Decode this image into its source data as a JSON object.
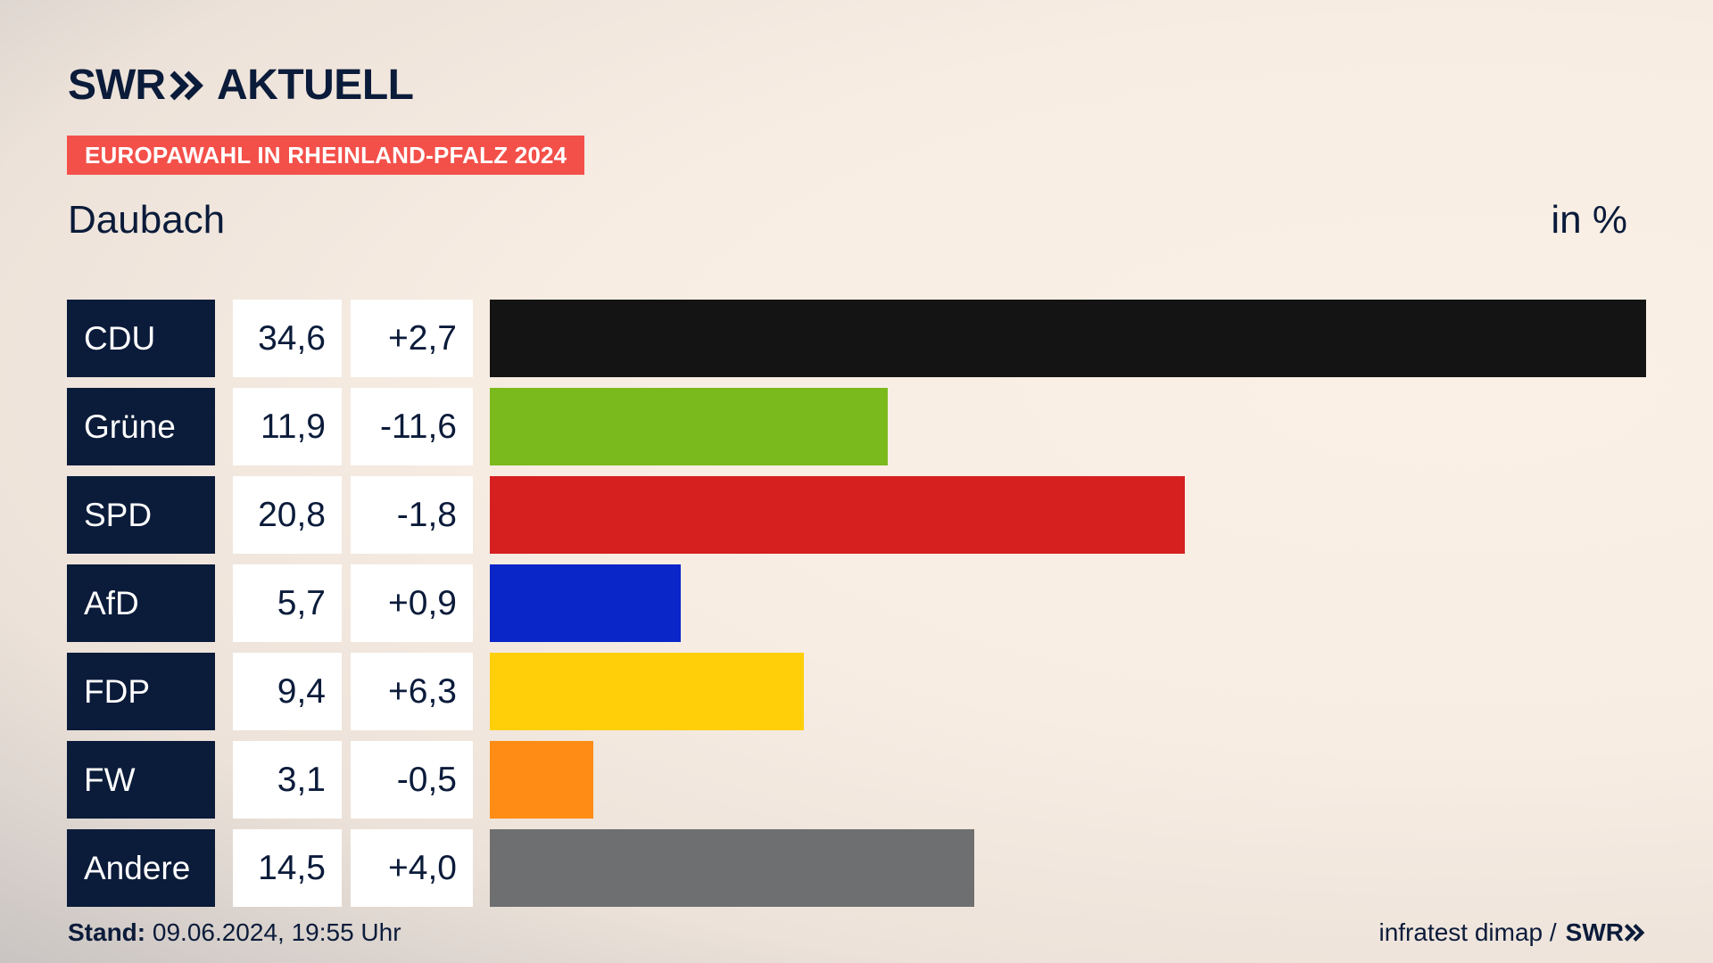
{
  "header": {
    "logo_swr": "SWR",
    "logo_aktuell": "AKTUELL",
    "banner": "EUROPAWAHL IN RHEINLAND-PFALZ 2024",
    "location": "Daubach",
    "unit": "in %"
  },
  "chart_data": {
    "type": "bar",
    "orientation": "horizontal",
    "categories": [
      "CDU",
      "Grüne",
      "SPD",
      "AfD",
      "FDP",
      "FW",
      "Andere"
    ],
    "values": [
      34.6,
      11.9,
      20.8,
      5.7,
      9.4,
      3.1,
      14.5
    ],
    "value_labels": [
      "34,6",
      "11,9",
      "20,8",
      "5,7",
      "9,4",
      "3,1",
      "14,5"
    ],
    "change_labels": [
      "+2,7",
      "-11,6",
      "-1,8",
      "+0,9",
      "+6,3",
      "-0,5",
      "+4,0"
    ],
    "colors": [
      "#141414",
      "#7aba1c",
      "#d62020",
      "#0a25c8",
      "#ffcf0a",
      "#ff8c14",
      "#6e6f70"
    ],
    "xlim": [
      0,
      34.6
    ]
  },
  "footer": {
    "stand_label": "Stand:",
    "stand_value": "09.06.2024, 19:55 Uhr",
    "source": "infratest dimap /",
    "source_logo": "SWR"
  }
}
